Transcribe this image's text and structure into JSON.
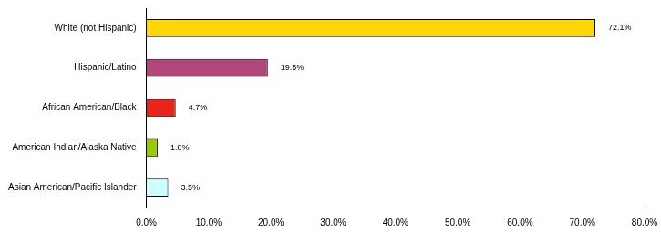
{
  "chart_data": {
    "type": "bar",
    "orientation": "horizontal",
    "categories": [
      "White (not Hispanic)",
      "Hispanic/Latino",
      "African American/Black",
      "American Indian/Alaska Native",
      "Asian American/Pacific Islander"
    ],
    "values": [
      72.1,
      19.5,
      4.7,
      1.8,
      3.5
    ],
    "value_labels": [
      "72.1%",
      "19.5%",
      "4.7%",
      "1.8%",
      "3.5%"
    ],
    "colors": [
      "#ffd700",
      "#b0467a",
      "#e8261c",
      "#99cc00",
      "#ccffff"
    ],
    "xlim": [
      0,
      80
    ],
    "xticks": [
      {
        "value": 0,
        "label": "0.0%"
      },
      {
        "value": 10,
        "label": "10.0%"
      },
      {
        "value": 20,
        "label": "20.0%"
      },
      {
        "value": 30,
        "label": "30.0%"
      },
      {
        "value": 40,
        "label": "40.0%"
      },
      {
        "value": 50,
        "label": "50.0%"
      },
      {
        "value": 60,
        "label": "60.0%"
      },
      {
        "value": 70,
        "label": "70.0%"
      },
      {
        "value": 80,
        "label": "80.0%"
      }
    ],
    "grid": false,
    "data_labels": true
  }
}
